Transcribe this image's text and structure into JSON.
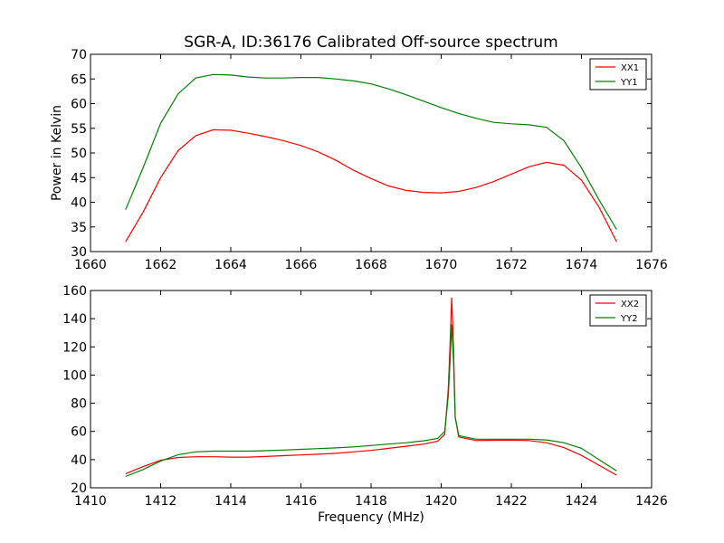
{
  "chart_data": [
    {
      "type": "line",
      "title": "SGR-A, ID:36176 Calibrated Off-source spectrum",
      "xlabel": "",
      "ylabel": "Power in Kelvin",
      "xlim": [
        1660,
        1676
      ],
      "ylim": [
        30,
        70
      ],
      "xticks": [
        1660,
        1662,
        1664,
        1666,
        1668,
        1670,
        1672,
        1674,
        1676
      ],
      "yticks": [
        30,
        35,
        40,
        45,
        50,
        55,
        60,
        65,
        70
      ],
      "grid": false,
      "legend": "top-right",
      "series": [
        {
          "name": "XX1",
          "color": "#ff0000",
          "x": [
            1661.0,
            1661.5,
            1662.0,
            1662.5,
            1663.0,
            1663.5,
            1664.0,
            1664.5,
            1665.0,
            1665.5,
            1666.0,
            1666.5,
            1667.0,
            1667.5,
            1668.0,
            1668.5,
            1669.0,
            1669.5,
            1670.0,
            1670.5,
            1671.0,
            1671.5,
            1672.0,
            1672.5,
            1673.0,
            1673.5,
            1674.0,
            1674.5,
            1675.0
          ],
          "y": [
            32,
            38,
            45,
            50.5,
            53.5,
            54.7,
            54.6,
            54.0,
            53.3,
            52.5,
            51.5,
            50.2,
            48.5,
            46.5,
            44.8,
            43.3,
            42.4,
            42.0,
            41.9,
            42.2,
            43.0,
            44.2,
            45.7,
            47.2,
            48.1,
            47.5,
            44.5,
            39,
            32
          ]
        },
        {
          "name": "YY1",
          "color": "#008000",
          "x": [
            1661.0,
            1661.5,
            1662.0,
            1662.5,
            1663.0,
            1663.5,
            1664.0,
            1664.5,
            1665.0,
            1665.5,
            1666.0,
            1666.5,
            1667.0,
            1667.5,
            1668.0,
            1668.5,
            1669.0,
            1669.5,
            1670.0,
            1670.5,
            1671.0,
            1671.5,
            1672.0,
            1672.5,
            1673.0,
            1673.5,
            1674.0,
            1674.5,
            1675.0
          ],
          "y": [
            38.5,
            47,
            56,
            62,
            65.2,
            65.9,
            65.8,
            65.4,
            65.2,
            65.2,
            65.3,
            65.3,
            65.0,
            64.6,
            64.0,
            63.0,
            61.8,
            60.5,
            59.2,
            58.0,
            57.0,
            56.2,
            55.9,
            55.7,
            55.2,
            52.5,
            47,
            40.5,
            34.5
          ]
        }
      ]
    },
    {
      "type": "line",
      "title": "",
      "xlabel": "Frequency (MHz)",
      "ylabel": "",
      "xlim": [
        1410,
        1426
      ],
      "ylim": [
        20,
        160
      ],
      "xticks": [
        1410,
        1412,
        1414,
        1416,
        1418,
        1420,
        1422,
        1424,
        1426
      ],
      "yticks": [
        20,
        40,
        60,
        80,
        100,
        120,
        140,
        160
      ],
      "grid": false,
      "legend": "top-right",
      "series": [
        {
          "name": "XX2",
          "color": "#ff0000",
          "x": [
            1411.0,
            1411.5,
            1412.0,
            1412.5,
            1413.0,
            1413.5,
            1414.0,
            1414.5,
            1415.0,
            1415.5,
            1416.0,
            1416.5,
            1417.0,
            1417.5,
            1418.0,
            1418.5,
            1419.0,
            1419.5,
            1419.9,
            1420.1,
            1420.2,
            1420.25,
            1420.3,
            1420.35,
            1420.4,
            1420.5,
            1421.0,
            1421.5,
            1422.0,
            1422.5,
            1423.0,
            1423.5,
            1424.0,
            1424.5,
            1425.0
          ],
          "y": [
            30,
            35,
            39.5,
            41.5,
            42,
            42,
            41.8,
            41.8,
            42.2,
            42.8,
            43.3,
            43.8,
            44.5,
            45.5,
            46.5,
            48,
            49.5,
            51,
            53,
            58,
            90,
            120,
            155,
            120,
            70,
            56,
            53.5,
            53.7,
            53.8,
            53.5,
            52,
            48.5,
            43,
            36,
            29
          ]
        },
        {
          "name": "YY2",
          "color": "#008000",
          "x": [
            1411.0,
            1411.5,
            1412.0,
            1412.5,
            1413.0,
            1413.5,
            1414.0,
            1414.5,
            1415.0,
            1415.5,
            1416.0,
            1416.5,
            1417.0,
            1417.5,
            1418.0,
            1418.5,
            1419.0,
            1419.5,
            1419.9,
            1420.1,
            1420.2,
            1420.25,
            1420.3,
            1420.35,
            1420.4,
            1420.5,
            1421.0,
            1421.5,
            1422.0,
            1422.5,
            1423.0,
            1423.5,
            1424.0,
            1424.5,
            1425.0
          ],
          "y": [
            28,
            33,
            39,
            43.5,
            45.5,
            46,
            46,
            46,
            46.3,
            46.8,
            47.3,
            47.8,
            48.3,
            49,
            50,
            51,
            52,
            53.3,
            55,
            60,
            85,
            108,
            136,
            110,
            70,
            57,
            54.5,
            54.5,
            54.5,
            54.5,
            54,
            52,
            48,
            40,
            32
          ]
        }
      ]
    }
  ]
}
